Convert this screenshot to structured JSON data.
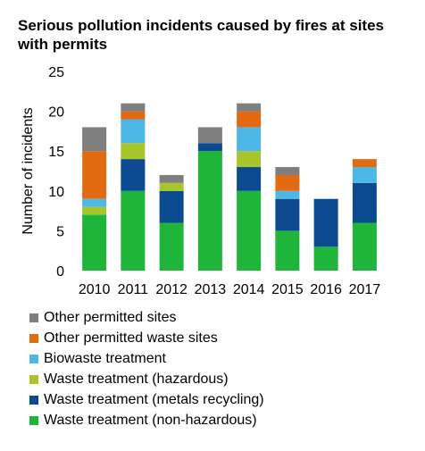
{
  "title": "Serious pollution incidents caused by fires at sites with permits",
  "chart_data": {
    "type": "bar",
    "stacked": true,
    "title": "Serious pollution incidents caused by fires at sites with permits",
    "xlabel": "",
    "ylabel": "Number of incidents",
    "ylim": [
      0,
      25
    ],
    "yticks": [
      0,
      5,
      10,
      15,
      20,
      25
    ],
    "categories": [
      "2010",
      "2011",
      "2012",
      "2013",
      "2014",
      "2015",
      "2016",
      "2017"
    ],
    "series": [
      {
        "name": "Waste treatment (non-hazardous)",
        "color": "#1eb53a",
        "values": [
          7,
          10,
          6,
          15,
          10,
          5,
          3,
          6
        ]
      },
      {
        "name": "Waste treatment (metals recycling)",
        "color": "#0b4a8f",
        "values": [
          0,
          4,
          4,
          1,
          3,
          4,
          6,
          5
        ]
      },
      {
        "name": "Waste treatment (hazardous)",
        "color": "#a8c62c",
        "values": [
          1,
          2,
          1,
          0,
          2,
          0,
          0,
          0
        ]
      },
      {
        "name": "Biowaste treatment",
        "color": "#4db8e8",
        "values": [
          1,
          3,
          0,
          0,
          3,
          1,
          0,
          2
        ]
      },
      {
        "name": "Other permitted waste sites",
        "color": "#e26b12",
        "values": [
          6,
          1,
          0,
          0,
          2,
          2,
          0,
          1
        ]
      },
      {
        "name": "Other permitted sites",
        "color": "#7f7f7f",
        "values": [
          3,
          1,
          1,
          2,
          1,
          1,
          0,
          0
        ]
      }
    ],
    "grid": false,
    "legend_position": "bottom"
  }
}
